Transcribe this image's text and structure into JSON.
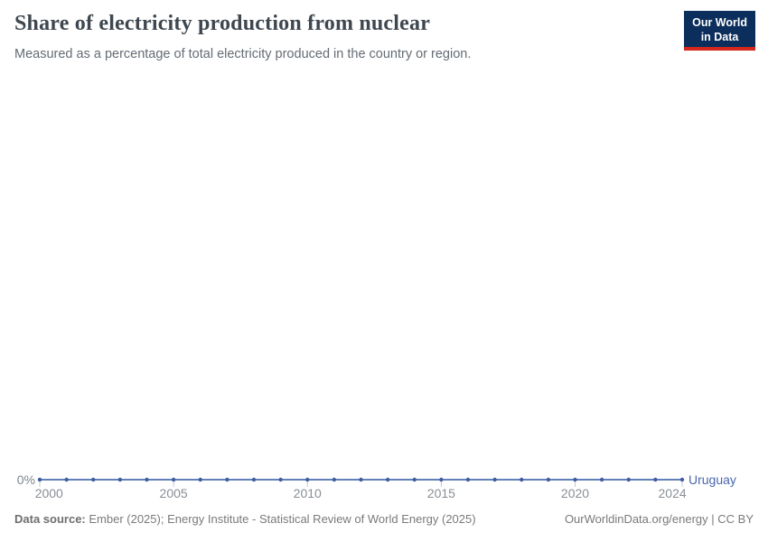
{
  "header": {
    "title": "Share of electricity production from nuclear",
    "subtitle": "Measured as a percentage of total electricity produced in the country or region."
  },
  "logo": {
    "line1": "Our World",
    "line2": "in Data"
  },
  "chart_data": {
    "type": "line",
    "title": "Share of electricity production from nuclear",
    "ylabel": "",
    "xlabel": "",
    "x": [
      2000,
      2001,
      2002,
      2003,
      2004,
      2005,
      2006,
      2007,
      2008,
      2009,
      2010,
      2011,
      2012,
      2013,
      2014,
      2015,
      2016,
      2017,
      2018,
      2019,
      2020,
      2021,
      2022,
      2023,
      2024
    ],
    "series": [
      {
        "name": "Uruguay",
        "values": [
          0,
          0,
          0,
          0,
          0,
          0,
          0,
          0,
          0,
          0,
          0,
          0,
          0,
          0,
          0,
          0,
          0,
          0,
          0,
          0,
          0,
          0,
          0,
          0,
          0
        ]
      }
    ],
    "x_tick_labels": [
      "2000",
      "2005",
      "2010",
      "2015",
      "2020",
      "2024"
    ],
    "x_tick_values": [
      2000,
      2005,
      2010,
      2015,
      2020,
      2024
    ],
    "y_tick_labels": [
      "0%"
    ],
    "xlim": [
      2000,
      2024
    ],
    "ylim": [
      0,
      1
    ],
    "grid": false,
    "legend": "end-of-line-label"
  },
  "footer": {
    "source_label": "Data source:",
    "source_text": " Ember (2025); Energy Institute - Statistical Review of World Energy (2025)",
    "credit": "OurWorldinData.org/energy | CC BY"
  },
  "colors": {
    "line": "#4e6eb0",
    "dot": "#3e5da0",
    "tick": "#c3c9cf",
    "series_label": "#4a67ad",
    "logo_bg": "#0b2e5c",
    "logo_red": "#d6271d"
  }
}
